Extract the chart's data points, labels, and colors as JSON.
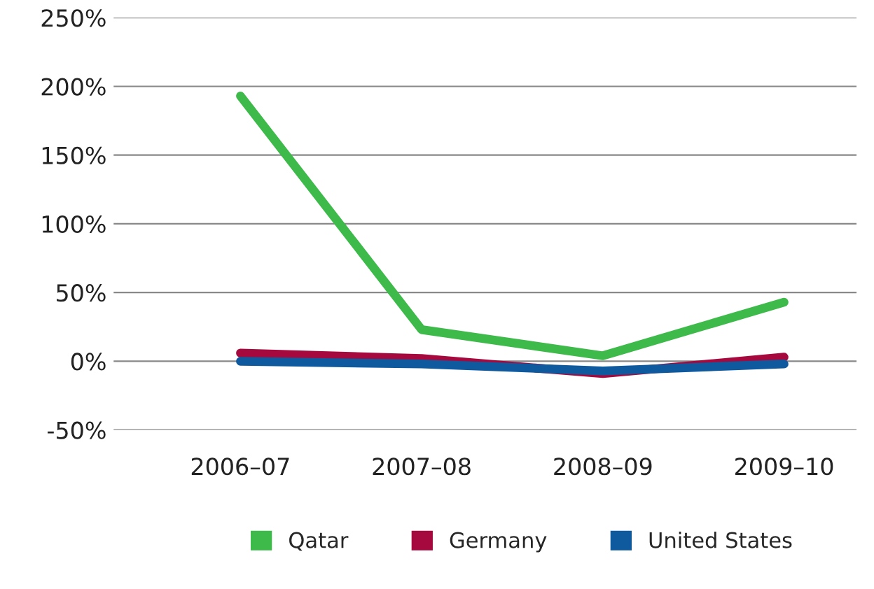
{
  "chart_data": {
    "type": "line",
    "categories": [
      "2006–07",
      "2007–08",
      "2008–09",
      "2009–10"
    ],
    "series": [
      {
        "name": "Qatar",
        "color": "#3dba4a",
        "values": [
          193,
          23,
          4,
          43
        ]
      },
      {
        "name": "Germany",
        "color": "#a6093d",
        "values": [
          6,
          2,
          -9,
          3
        ]
      },
      {
        "name": "United States",
        "color": "#0f5a9e",
        "values": [
          0,
          -2,
          -7,
          -2
        ]
      }
    ],
    "ylim": [
      -50,
      250
    ],
    "yticks": [
      {
        "value": -50,
        "label": "-50%"
      },
      {
        "value": 0,
        "label": "0%"
      },
      {
        "value": 50,
        "label": "50%"
      },
      {
        "value": 100,
        "label": "100%"
      },
      {
        "value": 150,
        "label": "150%"
      },
      {
        "value": 200,
        "label": "200%"
      },
      {
        "value": 250,
        "label": "250%"
      }
    ],
    "grid": "y",
    "legend": "bottom",
    "marker": "none",
    "line_style": "solid"
  }
}
